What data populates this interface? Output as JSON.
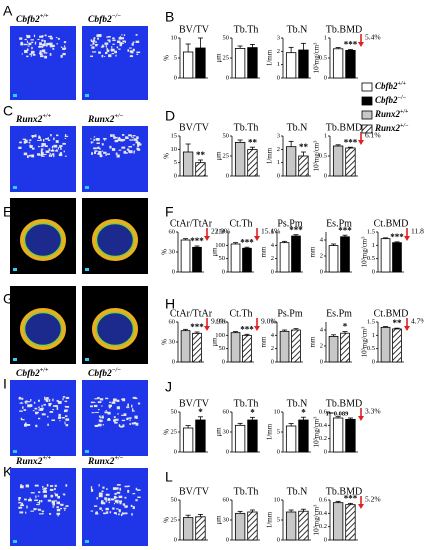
{
  "panels": [
    {
      "letter": "A",
      "labels": [
        {
          "gene": "Cbfb2",
          "genotype": "+/+"
        },
        {
          "gene": "Cbfb2",
          "genotype": "−/−"
        }
      ]
    },
    {
      "letter": "B"
    },
    {
      "letter": "C",
      "labels": [
        {
          "gene": "Runx2",
          "genotype": "+/+"
        },
        {
          "gene": "Runx2",
          "genotype": "+/−"
        }
      ]
    },
    {
      "letter": "D"
    },
    {
      "letter": "E",
      "labels": [
        {
          "gene": "Cbfb2",
          "genotype": "+/+"
        },
        {
          "gene": "Cbfb2",
          "genotype": "−/−"
        }
      ]
    },
    {
      "letter": "F"
    },
    {
      "letter": "G",
      "labels": [
        {
          "gene": "Runx2",
          "genotype": "+/+"
        },
        {
          "gene": "Runx2",
          "genotype": "+/−"
        }
      ]
    },
    {
      "letter": "H"
    },
    {
      "letter": "I",
      "labels": [
        {
          "gene": "Cbfb2",
          "genotype": "+/+"
        },
        {
          "gene": "Cbfb2",
          "genotype": "−/−"
        }
      ]
    },
    {
      "letter": "J"
    },
    {
      "letter": "K",
      "labels": [
        {
          "gene": "Runx2",
          "genotype": "+/+"
        },
        {
          "gene": "Runx2",
          "genotype": "+/−"
        }
      ]
    },
    {
      "letter": "L"
    }
  ],
  "legend": [
    {
      "gene": "Cbfb2",
      "genotype": "+/+",
      "color": "#ffffff",
      "hatch": false
    },
    {
      "gene": "Cbfb2",
      "genotype": "−/−",
      "color": "#000000",
      "hatch": false
    },
    {
      "gene": "Runx2",
      "genotype": "+/+",
      "color": "#c8c8c8",
      "hatch": false
    },
    {
      "gene": "Runx2",
      "genotype": "+/−",
      "color": "#ffffff",
      "hatch": true
    }
  ],
  "chart_data": [
    {
      "type": "bar",
      "title": "BV/TV",
      "y_label": "%",
      "values": [
        6.5,
        7.5
      ],
      "errors": [
        2,
        2.5
      ],
      "colors": [
        "#ffffff",
        "#000000"
      ],
      "hatch": [
        false,
        false
      ],
      "ylim": [
        0,
        10
      ],
      "yticks": [
        0,
        5,
        10
      ]
    },
    {
      "type": "bar",
      "title": "Tb.Th",
      "y_label": "μm",
      "values": [
        37,
        38
      ],
      "errors": [
        3,
        4
      ],
      "colors": [
        "#ffffff",
        "#000000"
      ],
      "hatch": [
        false,
        false
      ],
      "ylim": [
        0,
        50
      ],
      "yticks": [
        0,
        25,
        50
      ]
    },
    {
      "type": "bar",
      "title": "Tb.N",
      "y_label": "1/mm",
      "values": [
        1.9,
        2.1
      ],
      "errors": [
        0.4,
        0.5
      ],
      "colors": [
        "#ffffff",
        "#000000"
      ],
      "hatch": [
        false,
        false
      ],
      "ylim": [
        0,
        3
      ],
      "yticks": [
        0,
        1,
        2,
        3
      ]
    },
    {
      "type": "bar",
      "title": "Tb.BMD",
      "y_label": "10³mg/cm³",
      "values": [
        0.73,
        0.69
      ],
      "errors": [
        0.03,
        0.02
      ],
      "colors": [
        "#ffffff",
        "#000000"
      ],
      "hatch": [
        false,
        false
      ],
      "ylim": [
        0,
        1
      ],
      "yticks": [
        0,
        0.5,
        1
      ],
      "value_notes": [
        null,
        "***"
      ],
      "change": "5.4%"
    },
    {
      "type": "bar",
      "title": "BV/TV",
      "y_label": "%",
      "values": [
        9,
        5
      ],
      "errors": [
        3,
        1
      ],
      "colors": [
        "#c8c8c8",
        "#ffffff"
      ],
      "hatch": [
        false,
        true
      ],
      "ylim": [
        0,
        15
      ],
      "yticks": [
        0,
        5,
        10,
        15
      ],
      "value_notes": [
        null,
        "**"
      ]
    },
    {
      "type": "bar",
      "title": "Tb.Th",
      "y_label": "μm",
      "values": [
        42,
        33
      ],
      "errors": [
        3,
        3
      ],
      "colors": [
        "#c8c8c8",
        "#ffffff"
      ],
      "hatch": [
        false,
        true
      ],
      "ylim": [
        0,
        50
      ],
      "yticks": [
        0,
        25,
        50
      ],
      "value_notes": [
        null,
        "**"
      ]
    },
    {
      "type": "bar",
      "title": "Tb.N",
      "y_label": "1/mm",
      "values": [
        2.2,
        1.5
      ],
      "errors": [
        0.4,
        0.3
      ],
      "colors": [
        "#c8c8c8",
        "#ffffff"
      ],
      "hatch": [
        false,
        true
      ],
      "ylim": [
        0,
        3
      ],
      "yticks": [
        0,
        1,
        2,
        3
      ],
      "value_notes": [
        null,
        "**"
      ]
    },
    {
      "type": "bar",
      "title": "Tb.BMD",
      "y_label": "10³mg/cm³",
      "values": [
        0.75,
        0.7
      ],
      "errors": [
        0.03,
        0.02
      ],
      "colors": [
        "#c8c8c8",
        "#ffffff"
      ],
      "hatch": [
        false,
        true
      ],
      "ylim": [
        0,
        1
      ],
      "yticks": [
        0,
        0.5,
        1
      ],
      "value_notes": [
        null,
        "***"
      ],
      "change": "6.1%"
    },
    {
      "type": "bar",
      "title": "CtAr/TtAr",
      "y_label": "%",
      "values": [
        48,
        37
      ],
      "errors": [
        2,
        2
      ],
      "colors": [
        "#ffffff",
        "#000000"
      ],
      "hatch": [
        false,
        false
      ],
      "ylim": [
        0,
        60
      ],
      "yticks": [
        0,
        30,
        60
      ],
      "value_notes": [
        null,
        "***"
      ],
      "change": "22.9%"
    },
    {
      "type": "bar",
      "title": "Ct.Th",
      "y_label": "μm",
      "values": [
        105,
        89
      ],
      "errors": [
        5,
        4
      ],
      "colors": [
        "#ffffff",
        "#000000"
      ],
      "hatch": [
        false,
        false
      ],
      "ylim": [
        0,
        150
      ],
      "yticks": [
        0,
        50,
        100,
        150
      ],
      "value_notes": [
        null,
        "***"
      ],
      "change": "15.1%"
    },
    {
      "type": "bar",
      "title": "Ps.Pm",
      "y_label": "mm",
      "values": [
        4.4,
        5.4
      ],
      "errors": [
        0.2,
        0.2
      ],
      "colors": [
        "#ffffff",
        "#000000"
      ],
      "hatch": [
        false,
        false
      ],
      "ylim": [
        0,
        6
      ],
      "yticks": [
        0,
        2,
        4,
        6
      ],
      "value_notes": [
        null,
        "***"
      ]
    },
    {
      "type": "bar",
      "title": "Es.Pm",
      "y_label": "mm",
      "values": [
        3.3,
        4.4
      ],
      "errors": [
        0.2,
        0.2
      ],
      "colors": [
        "#ffffff",
        "#000000"
      ],
      "hatch": [
        false,
        false
      ],
      "ylim": [
        0,
        5
      ],
      "yticks": [
        0,
        2,
        4
      ],
      "value_notes": [
        null,
        "***"
      ]
    },
    {
      "type": "bar",
      "title": "Ct.BMD",
      "y_label": "10³mg/cm³",
      "values": [
        1.25,
        1.1
      ],
      "errors": [
        0.03,
        0.03
      ],
      "colors": [
        "#ffffff",
        "#000000"
      ],
      "hatch": [
        false,
        false
      ],
      "ylim": [
        0,
        1.5
      ],
      "yticks": [
        0,
        0.5,
        1,
        1.5
      ],
      "value_notes": [
        null,
        "***"
      ],
      "change": "11.8%"
    },
    {
      "type": "bar",
      "title": "CtAr/TtAr",
      "y_label": "%",
      "values": [
        47,
        43
      ],
      "errors": [
        2,
        2
      ],
      "colors": [
        "#c8c8c8",
        "#ffffff"
      ],
      "hatch": [
        false,
        true
      ],
      "ylim": [
        0,
        60
      ],
      "yticks": [
        0,
        30,
        60
      ],
      "value_notes": [
        null,
        "***"
      ],
      "change": "9.9%"
    },
    {
      "type": "bar",
      "title": "Ct.Th",
      "y_label": "μm",
      "values": [
        110,
        100
      ],
      "errors": [
        4,
        4
      ],
      "colors": [
        "#c8c8c8",
        "#ffffff"
      ],
      "hatch": [
        false,
        true
      ],
      "ylim": [
        0,
        150
      ],
      "yticks": [
        0,
        50,
        100,
        150
      ],
      "value_notes": [
        null,
        "***"
      ],
      "change": "9.0%"
    },
    {
      "type": "bar",
      "title": "Ps.Pm",
      "y_label": "mm",
      "values": [
        4.6,
        4.8
      ],
      "errors": [
        0.2,
        0.2
      ],
      "colors": [
        "#c8c8c8",
        "#ffffff"
      ],
      "hatch": [
        false,
        true
      ],
      "ylim": [
        0,
        6
      ],
      "yticks": [
        0,
        2,
        4,
        6
      ]
    },
    {
      "type": "bar",
      "title": "Es.Pm",
      "y_label": "mm",
      "values": [
        3.2,
        3.6
      ],
      "errors": [
        0.2,
        0.2
      ],
      "colors": [
        "#c8c8c8",
        "#ffffff"
      ],
      "hatch": [
        false,
        true
      ],
      "ylim": [
        0,
        5
      ],
      "yticks": [
        0,
        2,
        4
      ],
      "value_notes": [
        null,
        "*"
      ]
    },
    {
      "type": "bar",
      "title": "Ct.BMD",
      "y_label": "10³mg/cm³",
      "values": [
        1.3,
        1.24
      ],
      "errors": [
        0.03,
        0.03
      ],
      "colors": [
        "#c8c8c8",
        "#ffffff"
      ],
      "hatch": [
        false,
        true
      ],
      "ylim": [
        0,
        1.5
      ],
      "yticks": [
        0,
        0.5,
        1,
        1.5
      ],
      "value_notes": [
        null,
        "**"
      ],
      "change": "4.7%"
    },
    {
      "type": "bar",
      "title": "BV/TV",
      "y_label": "%",
      "values": [
        30,
        40
      ],
      "errors": [
        3,
        4
      ],
      "colors": [
        "#ffffff",
        "#000000"
      ],
      "hatch": [
        false,
        false
      ],
      "ylim": [
        0,
        50
      ],
      "yticks": [
        0,
        25,
        50
      ],
      "value_notes": [
        null,
        "*"
      ]
    },
    {
      "type": "bar",
      "title": "Tb.Th",
      "y_label": "μm",
      "values": [
        40,
        48
      ],
      "errors": [
        3,
        4
      ],
      "colors": [
        "#ffffff",
        "#000000"
      ],
      "hatch": [
        false,
        false
      ],
      "ylim": [
        0,
        60
      ],
      "yticks": [
        0,
        30,
        60
      ],
      "value_notes": [
        null,
        "*"
      ]
    },
    {
      "type": "bar",
      "title": "Tb.N",
      "y_label": "1/mm",
      "values": [
        6.5,
        8
      ],
      "errors": [
        0.6,
        0.7
      ],
      "colors": [
        "#ffffff",
        "#000000"
      ],
      "hatch": [
        false,
        false
      ],
      "ylim": [
        0,
        10
      ],
      "yticks": [
        0,
        5,
        10
      ],
      "value_notes": [
        null,
        "*"
      ]
    },
    {
      "type": "bar",
      "title": "Tb.BMD",
      "y_label": "10³mg/cm³",
      "values": [
        0.51,
        0.49
      ],
      "errors": [
        0.02,
        0.02
      ],
      "colors": [
        "#ffffff",
        "#000000"
      ],
      "hatch": [
        false,
        false
      ],
      "ylim": [
        0,
        0.6
      ],
      "yticks": [
        0,
        0.2,
        0.4,
        0.6
      ],
      "value_notes": [
        null,
        "P=0.089"
      ],
      "change": "3.3%"
    },
    {
      "type": "bar",
      "title": "BV/TV",
      "y_label": "%",
      "values": [
        28,
        29
      ],
      "errors": [
        3,
        3
      ],
      "colors": [
        "#c8c8c8",
        "#ffffff"
      ],
      "hatch": [
        false,
        true
      ],
      "ylim": [
        0,
        50
      ],
      "yticks": [
        0,
        25,
        50
      ]
    },
    {
      "type": "bar",
      "title": "Tb.Th",
      "y_label": "μm",
      "values": [
        40,
        42
      ],
      "errors": [
        3,
        3
      ],
      "colors": [
        "#c8c8c8",
        "#ffffff"
      ],
      "hatch": [
        false,
        true
      ],
      "ylim": [
        0,
        60
      ],
      "yticks": [
        0,
        30,
        60
      ]
    },
    {
      "type": "bar",
      "title": "Tb.N",
      "y_label": "1/mm",
      "values": [
        7,
        7.2
      ],
      "errors": [
        0.5,
        0.5
      ],
      "colors": [
        "#c8c8c8",
        "#ffffff"
      ],
      "hatch": [
        false,
        true
      ],
      "ylim": [
        0,
        10
      ],
      "yticks": [
        0,
        5,
        10
      ]
    },
    {
      "type": "bar",
      "title": "Tb.BMD",
      "y_label": "10³mg/cm³",
      "values": [
        0.56,
        0.53
      ],
      "errors": [
        0.02,
        0.02
      ],
      "colors": [
        "#c8c8c8",
        "#ffffff"
      ],
      "hatch": [
        false,
        true
      ],
      "ylim": [
        0,
        0.6
      ],
      "yticks": [
        0,
        0.2,
        0.4,
        0.6
      ],
      "value_notes": [
        null,
        "***"
      ],
      "change": "5.2%"
    }
  ]
}
